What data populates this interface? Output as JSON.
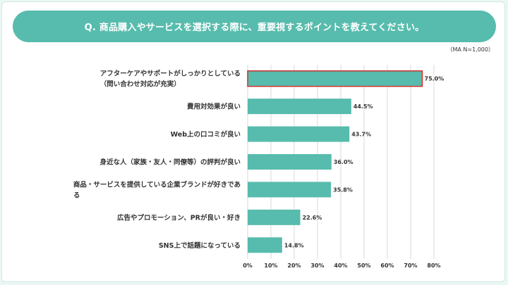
{
  "header": {
    "title": "Q. 商品購入やサービスを選択する際に、重要視するポイントを教えてください。",
    "note": "（MA N=1,000）"
  },
  "colors": {
    "bar": "#57bcad",
    "highlight_border": "#d0312d",
    "grid": "#d9d9d9",
    "banner": "#57bcad"
  },
  "chart_data": {
    "type": "bar",
    "orientation": "horizontal",
    "categories": [
      [
        "アフターケアやサポートがしっかりとしている",
        "（問い合わせ対応が充実）"
      ],
      [
        "費用対効果が良い"
      ],
      [
        "Web上の口コミが良い"
      ],
      [
        "身近な人（家族・友人・同僚等）の評判が良い"
      ],
      [
        "商品・サービスを提供している企業ブランドが好きであ",
        "る"
      ],
      [
        "広告やプロモーション、PRが良い・好き"
      ],
      [
        "SNS上で話題になっている"
      ]
    ],
    "values": [
      75.0,
      44.5,
      43.7,
      36.0,
      35.8,
      22.6,
      14.8
    ],
    "value_labels": [
      "75.0%",
      "44.5%",
      "43.7%",
      "36.0%",
      "35.8%",
      "22.6%",
      "14.8%"
    ],
    "highlighted_index": 0,
    "xlim": [
      0,
      80
    ],
    "xticks": [
      0,
      10,
      20,
      30,
      40,
      50,
      60,
      70,
      80
    ],
    "xtick_labels": [
      "0%",
      "10%",
      "20%",
      "30%",
      "40%",
      "50%",
      "60%",
      "70%",
      "80%"
    ],
    "grid": true
  }
}
